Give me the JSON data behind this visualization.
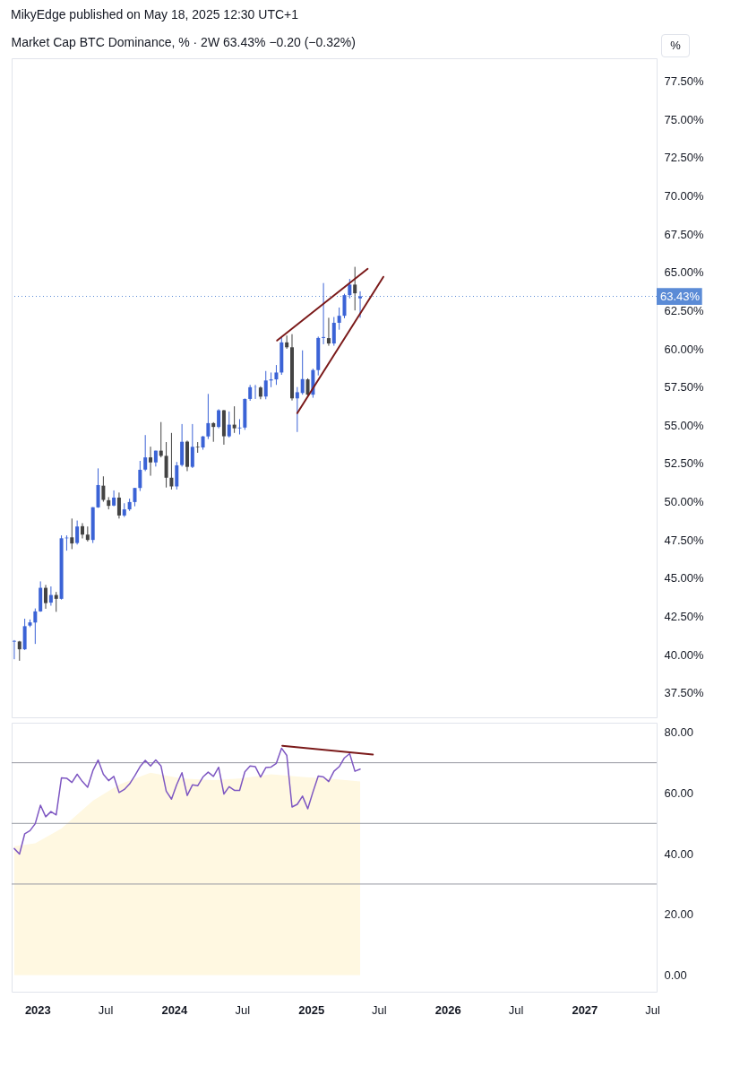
{
  "chart_data": [
    {
      "type": "candlestick",
      "title": "Market Cap BTC Dominance, % · 2W  63.43%  −0.20 (−0.32%)",
      "annotations": [
        "MikyEdge published on May 18, 2025 12:30 UTC+1",
        "%"
      ],
      "x": [
        "2022-10-31",
        "2022-11-14",
        "2022-11-28",
        "2022-12-12",
        "2022-12-26",
        "2023-01-09",
        "2023-01-23",
        "2023-02-06",
        "2023-02-20",
        "2023-03-06",
        "2023-03-20",
        "2023-04-03",
        "2023-04-17",
        "2023-05-01",
        "2023-05-15",
        "2023-05-29",
        "2023-06-12",
        "2023-06-26",
        "2023-07-10",
        "2023-07-24",
        "2023-08-07",
        "2023-08-21",
        "2023-09-04",
        "2023-09-18",
        "2023-10-02",
        "2023-10-16",
        "2023-10-30",
        "2023-11-13",
        "2023-11-27",
        "2023-12-11",
        "2023-12-25",
        "2024-01-08",
        "2024-01-22",
        "2024-02-05",
        "2024-02-19",
        "2024-03-04",
        "2024-03-18",
        "2024-04-01",
        "2024-04-15",
        "2024-04-29",
        "2024-05-13",
        "2024-05-27",
        "2024-06-10",
        "2024-06-24",
        "2024-07-08",
        "2024-07-22",
        "2024-08-05",
        "2024-08-19",
        "2024-09-02",
        "2024-09-16",
        "2024-09-30",
        "2024-10-14",
        "2024-10-28",
        "2024-11-11",
        "2024-11-25",
        "2024-12-09",
        "2024-12-23",
        "2025-01-06",
        "2025-01-20",
        "2025-02-03",
        "2025-02-17",
        "2025-03-03",
        "2025-03-17",
        "2025-03-31",
        "2025-04-14",
        "2025-04-28",
        "2025-05-12"
      ],
      "ohlc": [
        [
          40.85,
          40.95,
          39.7,
          40.9
        ],
        [
          40.86,
          40.9,
          39.6,
          40.35
        ],
        [
          40.35,
          42.35,
          40.3,
          41.86
        ],
        [
          41.9,
          42.3,
          41.8,
          42.11
        ],
        [
          42.1,
          43.02,
          40.7,
          42.83
        ],
        [
          42.83,
          44.79,
          42.8,
          44.37
        ],
        [
          44.37,
          44.56,
          43.0,
          43.37
        ],
        [
          43.4,
          44.46,
          43.2,
          43.9
        ],
        [
          43.9,
          44.1,
          42.8,
          43.65
        ],
        [
          43.65,
          47.8,
          43.6,
          47.61
        ],
        [
          47.61,
          47.8,
          46.8,
          47.65
        ],
        [
          47.67,
          48.9,
          46.9,
          47.27
        ],
        [
          47.3,
          48.77,
          47.2,
          48.38
        ],
        [
          48.4,
          48.6,
          47.6,
          47.85
        ],
        [
          47.85,
          48.38,
          47.4,
          47.5
        ],
        [
          47.5,
          49.64,
          47.3,
          49.64
        ],
        [
          49.63,
          52.18,
          49.6,
          51.09
        ],
        [
          51.05,
          51.66,
          50.0,
          50.12
        ],
        [
          50.1,
          50.3,
          49.5,
          49.73
        ],
        [
          49.75,
          50.74,
          49.7,
          50.27
        ],
        [
          50.27,
          50.6,
          48.9,
          49.1
        ],
        [
          49.1,
          49.9,
          49.0,
          49.5
        ],
        [
          49.5,
          50.2,
          49.4,
          49.98
        ],
        [
          49.98,
          50.9,
          49.7,
          50.9
        ],
        [
          50.9,
          52.67,
          50.7,
          52.09
        ],
        [
          52.1,
          54.36,
          52.0,
          52.9
        ],
        [
          52.9,
          53.6,
          51.7,
          52.57
        ],
        [
          52.57,
          53.34,
          52.3,
          53.34
        ],
        [
          53.34,
          55.21,
          52.9,
          53.0
        ],
        [
          53.0,
          53.9,
          50.93,
          51.57
        ],
        [
          51.57,
          54.5,
          50.8,
          51.0
        ],
        [
          51.0,
          52.6,
          50.8,
          52.38
        ],
        [
          52.4,
          55.08,
          52.3,
          53.92
        ],
        [
          53.93,
          54.0,
          52.0,
          52.28
        ],
        [
          52.28,
          55.08,
          52.2,
          53.59
        ],
        [
          53.59,
          53.9,
          53.2,
          53.55
        ],
        [
          53.55,
          54.3,
          53.4,
          54.27
        ],
        [
          54.27,
          57.05,
          54.1,
          55.14
        ],
        [
          55.14,
          55.2,
          53.92,
          54.89
        ],
        [
          54.89,
          56.05,
          54.8,
          55.98
        ],
        [
          55.98,
          56.0,
          53.73,
          54.28
        ],
        [
          54.28,
          55.9,
          54.2,
          55.04
        ],
        [
          55.04,
          56.24,
          54.5,
          54.8
        ],
        [
          54.8,
          55.4,
          54.4,
          54.85
        ],
        [
          54.85,
          56.75,
          54.7,
          56.72
        ],
        [
          56.72,
          57.64,
          56.6,
          57.49
        ],
        [
          57.49,
          57.64,
          56.72,
          57.5
        ],
        [
          57.47,
          57.55,
          56.7,
          56.87
        ],
        [
          56.88,
          58.55,
          56.7,
          57.93
        ],
        [
          57.93,
          58.45,
          57.49,
          58.0
        ],
        [
          58.0,
          58.94,
          57.64,
          58.45
        ],
        [
          58.45,
          60.77,
          58.3,
          60.42
        ],
        [
          60.42,
          60.87,
          60.0,
          60.1
        ],
        [
          60.1,
          60.96,
          56.62,
          56.76
        ],
        [
          56.76,
          57.5,
          54.56,
          57.16
        ],
        [
          57.11,
          59.9,
          57.0,
          58.02
        ],
        [
          58.0,
          58.07,
          56.92,
          57.0
        ],
        [
          57.0,
          58.7,
          56.8,
          58.61
        ],
        [
          58.61,
          60.8,
          58.26,
          60.71
        ],
        [
          60.71,
          64.3,
          60.3,
          60.77
        ],
        [
          60.7,
          62.03,
          60.2,
          60.35
        ],
        [
          60.35,
          62.08,
          60.2,
          61.7
        ],
        [
          61.7,
          62.7,
          61.25,
          62.16
        ],
        [
          62.16,
          63.6,
          62.0,
          63.51
        ],
        [
          63.51,
          64.57,
          63.3,
          64.2
        ],
        [
          64.2,
          65.36,
          62.51,
          63.63
        ],
        [
          63.3,
          63.76,
          62.03,
          63.43
        ]
      ],
      "colors": [
        "#3b63d6",
        "#434343",
        "#3b63d6",
        "#3b63d6",
        "#3b63d6",
        "#3b63d6",
        "#434343",
        "#3b63d6",
        "#434343",
        "#3b63d6",
        "#3b63d6",
        "#434343",
        "#3b63d6",
        "#434343",
        "#434343",
        "#3b63d6",
        "#3b63d6",
        "#434343",
        "#434343",
        "#3b63d6",
        "#434343",
        "#3b63d6",
        "#3b63d6",
        "#3b63d6",
        "#3b63d6",
        "#3b63d6",
        "#434343",
        "#3b63d6",
        "#434343",
        "#434343",
        "#434343",
        "#3b63d6",
        "#3b63d6",
        "#434343",
        "#3b63d6",
        "#434343",
        "#3b63d6",
        "#3b63d6",
        "#434343",
        "#3b63d6",
        "#434343",
        "#3b63d6",
        "#434343",
        "#3b63d6",
        "#3b63d6",
        "#3b63d6",
        "#3b63d6",
        "#434343",
        "#3b63d6",
        "#3b63d6",
        "#3b63d6",
        "#3b63d6",
        "#434343",
        "#434343",
        "#3b63d6",
        "#3b63d6",
        "#434343",
        "#3b63d6",
        "#3b63d6",
        "#3b63d6",
        "#434343",
        "#3b63d6",
        "#3b63d6",
        "#3b63d6",
        "#3b63d6",
        "#434343",
        "#3b63d6"
      ],
      "series": [
        {
          "type": "line",
          "color": "#7b1a1a",
          "x": [
            "2024-10-02",
            "2025-06-01"
          ],
          "values": [
            60.54,
            65.23
          ]
        },
        {
          "type": "line",
          "color": "#7b1a1a",
          "x": [
            "2024-11-25",
            "2025-07-13"
          ],
          "values": [
            55.79,
            64.71
          ]
        }
      ],
      "ref_lines": [
        {
          "axis": "y",
          "value": 63.43,
          "label": "63.43%",
          "color": "#5b8bd6",
          "line_style": "dotted"
        }
      ],
      "xlim": [
        "2022-10-24",
        "2027-07-13"
      ],
      "ylim": [
        35.9,
        79.0
      ],
      "yticks": [
        {
          "value": 37.5,
          "label": "37.50%"
        },
        {
          "value": 40,
          "label": "40.00%"
        },
        {
          "value": 42.5,
          "label": "42.50%"
        },
        {
          "value": 45,
          "label": "45.00%"
        },
        {
          "value": 47.5,
          "label": "47.50%"
        },
        {
          "value": 50,
          "label": "50.00%"
        },
        {
          "value": 52.5,
          "label": "52.50%"
        },
        {
          "value": 55,
          "label": "55.00%"
        },
        {
          "value": 57.5,
          "label": "57.50%"
        },
        {
          "value": 60,
          "label": "60.00%"
        },
        {
          "value": 62.5,
          "label": "62.50%"
        },
        {
          "value": 65,
          "label": "65.00%"
        },
        {
          "value": 67.5,
          "label": "67.50%"
        },
        {
          "value": 70,
          "label": "70.00%"
        },
        {
          "value": 72.5,
          "label": "72.50%"
        },
        {
          "value": 75,
          "label": "75.00%"
        },
        {
          "value": 77.5,
          "label": "77.50%"
        }
      ],
      "tick_labels": "y"
    },
    {
      "type": "line",
      "x": [
        "2022-10-31",
        "2022-11-14",
        "2022-11-28",
        "2022-12-12",
        "2022-12-26",
        "2023-01-09",
        "2023-01-23",
        "2023-02-06",
        "2023-02-20",
        "2023-03-06",
        "2023-03-20",
        "2023-04-03",
        "2023-04-17",
        "2023-05-01",
        "2023-05-15",
        "2023-05-29",
        "2023-06-12",
        "2023-06-26",
        "2023-07-10",
        "2023-07-24",
        "2023-08-07",
        "2023-08-21",
        "2023-09-04",
        "2023-09-18",
        "2023-10-02",
        "2023-10-16",
        "2023-10-30",
        "2023-11-13",
        "2023-11-27",
        "2023-12-11",
        "2023-12-25",
        "2024-01-08",
        "2024-01-22",
        "2024-02-05",
        "2024-02-19",
        "2024-03-04",
        "2024-03-18",
        "2024-04-01",
        "2024-04-15",
        "2024-04-29",
        "2024-05-13",
        "2024-05-27",
        "2024-06-10",
        "2024-06-24",
        "2024-07-08",
        "2024-07-22",
        "2024-08-05",
        "2024-08-19",
        "2024-09-02",
        "2024-09-16",
        "2024-09-30",
        "2024-10-14",
        "2024-10-28",
        "2024-11-11",
        "2024-11-25",
        "2024-12-09",
        "2024-12-23",
        "2025-01-06",
        "2025-01-20",
        "2025-02-03",
        "2025-02-17",
        "2025-03-03",
        "2025-03-17",
        "2025-03-31",
        "2025-04-14",
        "2025-04-28",
        "2025-05-12"
      ],
      "series": [
        {
          "type": "area",
          "color": "#fff8e1",
          "x": [
            "2022-10-31",
            "2022-12-26",
            "2023-03-06",
            "2023-05-29",
            "2023-08-07",
            "2023-10-30",
            "2024-01-22",
            "2024-04-15",
            "2024-06-24",
            "2024-09-16",
            "2024-12-09",
            "2025-02-17",
            "2025-05-12"
          ],
          "values": [
            42.5,
            43.4,
            48.3,
            57.5,
            62.8,
            66.7,
            64.8,
            64.3,
            64.8,
            66.2,
            65.3,
            64.8,
            63.8
          ]
        },
        {
          "type": "line",
          "color": "#7e57c2",
          "values": [
            41.7,
            39.9,
            46.6,
            47.6,
            49.9,
            56.0,
            52.2,
            53.9,
            52.8,
            65.0,
            64.9,
            63.5,
            66.2,
            63.8,
            61.9,
            67.4,
            70.9,
            66.2,
            64.1,
            65.5,
            60.2,
            61.2,
            63.0,
            65.7,
            68.7,
            70.8,
            68.9,
            70.9,
            68.9,
            60.6,
            58.0,
            62.8,
            66.7,
            59.2,
            62.7,
            62.4,
            65.3,
            66.9,
            65.5,
            68.5,
            59.7,
            62.1,
            60.9,
            60.9,
            67.0,
            68.9,
            68.7,
            65.3,
            68.4,
            68.6,
            69.8,
            74.8,
            72.4,
            55.4,
            56.3,
            59.0,
            54.8,
            60.4,
            65.6,
            65.3,
            63.8,
            67.2,
            68.7,
            71.6,
            73.0,
            67.2,
            67.9
          ]
        },
        {
          "type": "line",
          "color": "#7b1a1a",
          "x": [
            "2024-10-16",
            "2025-06-15"
          ],
          "values": [
            75.6,
            72.7
          ]
        }
      ],
      "ref_lines": [
        {
          "axis": "y",
          "value": 70,
          "color": "#9598a1"
        },
        {
          "axis": "y",
          "value": 50,
          "color": "#9598a1"
        },
        {
          "axis": "y",
          "value": 30,
          "color": "#9598a1"
        }
      ],
      "xlim": [
        "2022-10-24",
        "2027-07-13"
      ],
      "xticks": [
        {
          "value": "2023-01-01",
          "label": "2023"
        },
        {
          "value": "2023-07-01",
          "label": "Jul"
        },
        {
          "value": "2024-01-01",
          "label": "2024"
        },
        {
          "value": "2024-07-01",
          "label": "Jul"
        },
        {
          "value": "2025-01-01",
          "label": "2025"
        },
        {
          "value": "2025-07-01",
          "label": "Jul"
        },
        {
          "value": "2026-01-01",
          "label": "2026"
        },
        {
          "value": "2026-07-01",
          "label": "Jul"
        },
        {
          "value": "2027-01-01",
          "label": "2027"
        },
        {
          "value": "2027-07-01",
          "label": "Jul"
        }
      ],
      "ylim": [
        -5.5,
        83.2
      ],
      "yticks": [
        {
          "value": 0,
          "label": "0.00"
        },
        {
          "value": 20,
          "label": "20.00"
        },
        {
          "value": 40,
          "label": "40.00"
        },
        {
          "value": 60,
          "label": "60.00"
        },
        {
          "value": 80,
          "label": "80.00"
        }
      ]
    }
  ]
}
